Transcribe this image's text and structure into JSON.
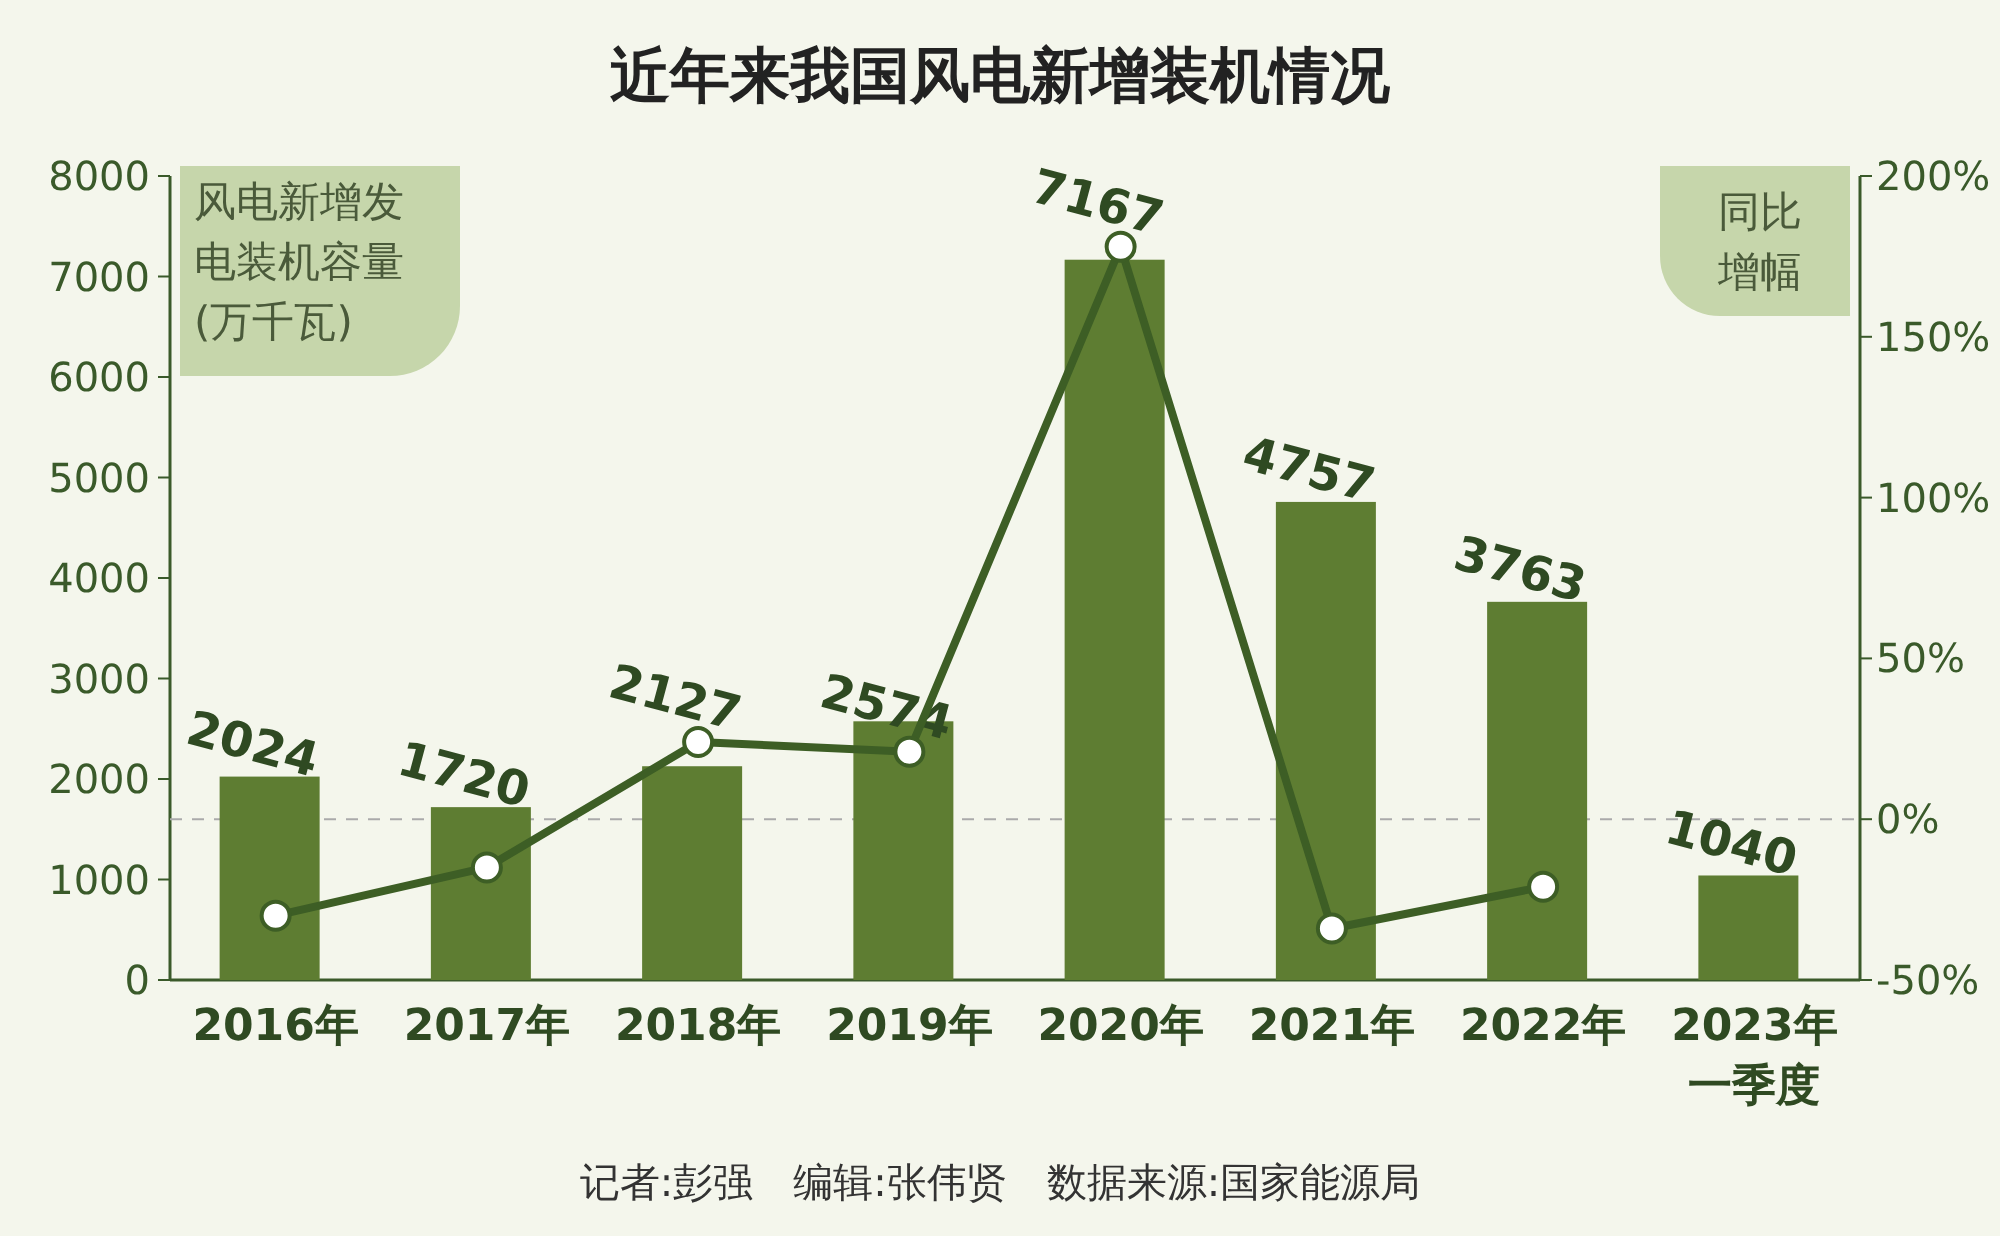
{
  "chart_data": {
    "type": "bar",
    "title": "近年来我国风电新增装机情况",
    "ylabel": "风电新增发电装机容量(万千瓦)",
    "y2label": "同比增幅",
    "categories": [
      "2016年",
      "2017年",
      "2018年",
      "2019年",
      "2020年",
      "2021年",
      "2022年",
      "2023年一季度"
    ],
    "series": [
      {
        "color": "#5e7d32",
        "values": [
          2024,
          1720,
          2127,
          2574,
          7167,
          4757,
          3763,
          1040
        ],
        "value_labels": [
          "2024",
          "1720",
          "2127",
          "2574",
          "7167",
          "4757",
          "3763",
          "1040"
        ]
      },
      {
        "type": "line",
        "axis": "y2",
        "color": "#3d5e25",
        "marker": "circle",
        "values": [
          -30,
          -15,
          24,
          21,
          178,
          -34,
          -21,
          null
        ]
      }
    ],
    "ylim": [
      0,
      8000
    ],
    "yticks": [
      0,
      1000,
      2000,
      3000,
      4000,
      5000,
      6000,
      7000,
      8000
    ],
    "y2lim": [
      -50,
      200
    ],
    "y2ticks": [
      {
        "value": -50,
        "label": "-50%"
      },
      {
        "value": 0,
        "label": "0%"
      },
      {
        "value": 50,
        "label": "50%"
      },
      {
        "value": 100,
        "label": "100%"
      },
      {
        "value": 150,
        "label": "150%"
      },
      {
        "value": 200,
        "label": "200%"
      }
    ],
    "ref_lines": [
      {
        "axis": "y2",
        "value": 0,
        "color": "#aaaaaa",
        "line_style": "dashed"
      }
    ],
    "annotations": [
      "记者:彭强　编辑:张伟贤　数据来源:国家能源局"
    ]
  }
}
